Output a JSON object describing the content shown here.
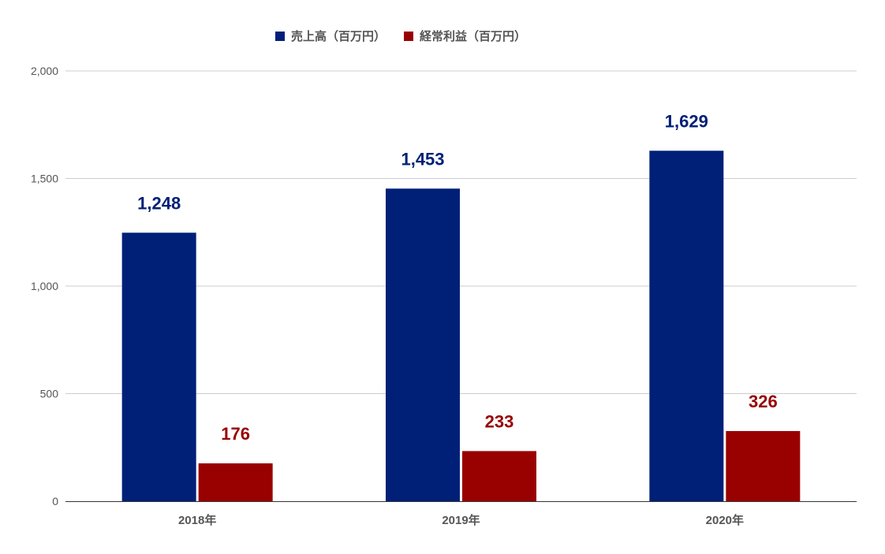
{
  "chart_data": {
    "type": "bar",
    "title": "",
    "xlabel": "",
    "ylabel": "",
    "categories": [
      "2018年",
      "2019年",
      "2020年"
    ],
    "series": [
      {
        "name": "売上高（百万円）",
        "values": [
          1248,
          1453,
          1629
        ],
        "color": "#002078",
        "labels": [
          "1,248",
          "1,453",
          "1,629"
        ]
      },
      {
        "name": "経常利益（百万円）",
        "values": [
          176,
          233,
          326
        ],
        "color": "#990000",
        "labels": [
          "176",
          "233",
          "326"
        ]
      }
    ],
    "ylim": [
      0,
      2000
    ],
    "yticks": [
      0,
      500,
      1000,
      1500,
      2000
    ],
    "ytick_labels": [
      "0",
      "500",
      "1,000",
      "1,500",
      "2,000"
    ],
    "grid": true,
    "legend_position": "top-center"
  }
}
